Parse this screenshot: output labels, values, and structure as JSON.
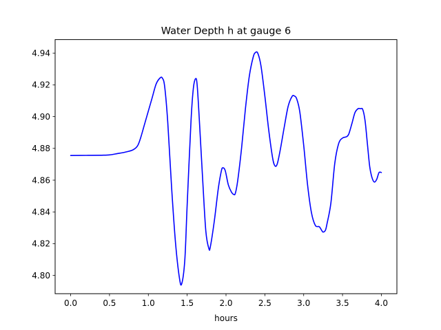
{
  "chart_data": {
    "type": "line",
    "title": "Water Depth h at gauge 6",
    "xlabel": "hours",
    "ylabel": "",
    "xlim": [
      -0.2,
      4.2
    ],
    "ylim": [
      4.7885,
      4.9485
    ],
    "xticks": [
      0.0,
      0.5,
      1.0,
      1.5,
      2.0,
      2.5,
      3.0,
      3.5,
      4.0
    ],
    "xtick_labels": [
      "0.0",
      "0.5",
      "1.0",
      "1.5",
      "2.0",
      "2.5",
      "3.0",
      "3.5",
      "4.0"
    ],
    "yticks": [
      4.8,
      4.82,
      4.84,
      4.86,
      4.88,
      4.9,
      4.92,
      4.94
    ],
    "ytick_labels": [
      "4.80",
      "4.82",
      "4.84",
      "4.86",
      "4.88",
      "4.90",
      "4.92",
      "4.94"
    ],
    "grid": false,
    "series": [
      {
        "color": "#0000ff",
        "x": [
          0.0,
          0.2,
          0.4,
          0.5,
          0.6,
          0.7,
          0.8,
          0.86,
          0.9,
          0.95,
          1.0,
          1.05,
          1.1,
          1.15,
          1.18,
          1.21,
          1.25,
          1.3,
          1.35,
          1.4,
          1.43,
          1.47,
          1.5,
          1.55,
          1.58,
          1.61,
          1.63,
          1.66,
          1.7,
          1.74,
          1.78,
          1.8,
          1.85,
          1.9,
          1.94,
          1.96,
          1.99,
          2.03,
          2.07,
          2.1,
          2.12,
          2.15,
          2.2,
          2.25,
          2.3,
          2.35,
          2.38,
          2.41,
          2.45,
          2.5,
          2.55,
          2.6,
          2.63,
          2.66,
          2.7,
          2.75,
          2.8,
          2.85,
          2.88,
          2.91,
          2.95,
          3.0,
          3.05,
          3.1,
          3.15,
          3.2,
          3.23,
          3.25,
          3.28,
          3.3,
          3.35,
          3.4,
          3.45,
          3.5,
          3.55,
          3.58,
          3.62,
          3.66,
          3.7,
          3.73,
          3.76,
          3.79,
          3.82,
          3.85,
          3.88,
          3.91,
          3.94,
          3.97,
          4.0
        ],
        "y": [
          4.8755,
          4.8756,
          4.8757,
          4.8759,
          4.8767,
          4.8776,
          4.879,
          4.8815,
          4.8865,
          4.895,
          4.9035,
          4.912,
          4.9205,
          4.9243,
          4.9243,
          4.919,
          4.8965,
          4.855,
          4.8205,
          4.7985,
          4.7948,
          4.81,
          4.8445,
          4.8978,
          4.918,
          4.924,
          4.919,
          4.895,
          4.86,
          4.828,
          4.8168,
          4.8185,
          4.8345,
          4.8545,
          4.8658,
          4.8678,
          4.866,
          4.857,
          4.8525,
          4.851,
          4.8517,
          4.8595,
          4.88,
          4.905,
          4.9255,
          4.9375,
          4.9404,
          4.9398,
          4.932,
          4.913,
          4.8915,
          4.874,
          4.869,
          4.8703,
          4.8795,
          4.8935,
          4.9065,
          4.9127,
          4.913,
          4.9112,
          4.903,
          4.882,
          4.857,
          4.8395,
          4.8315,
          4.8307,
          4.8285,
          4.8273,
          4.8285,
          4.8325,
          4.8455,
          4.8705,
          4.883,
          4.8865,
          4.8873,
          4.889,
          4.8955,
          4.9025,
          4.905,
          4.905,
          4.9045,
          4.8975,
          4.883,
          4.8685,
          4.8615,
          4.8588,
          4.8605,
          4.8648,
          4.8648
        ]
      }
    ]
  }
}
